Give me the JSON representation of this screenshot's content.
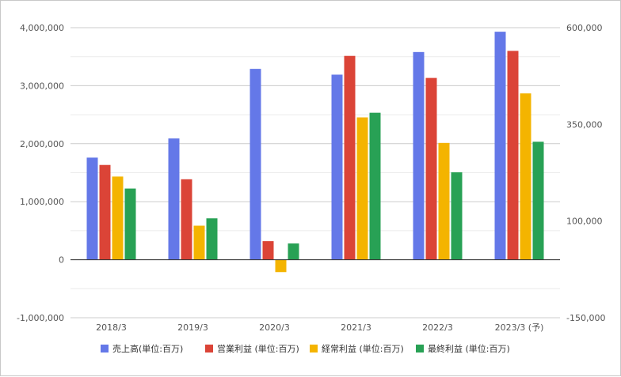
{
  "chart_data": {
    "type": "bar",
    "categories": [
      "2018/3",
      "2019/3",
      "2020/3",
      "2021/3",
      "2022/3",
      "2023/3 (予)"
    ],
    "left_axis": {
      "range": [
        -1000000,
        4000000
      ],
      "ticks": [
        "4,000,000",
        "3,000,000",
        "2,000,000",
        "1,000,000",
        "0",
        "-1,000,000"
      ],
      "tick_values": [
        4000000,
        3000000,
        2000000,
        1000000,
        0,
        -1000000
      ]
    },
    "right_axis": {
      "range": [
        -150000,
        600000
      ],
      "ticks": [
        "600,000",
        "350,000",
        "100,000",
        "-150,000"
      ],
      "tick_values": [
        600000,
        350000,
        100000,
        -150000
      ]
    },
    "grid": true,
    "legend_position": "bottom",
    "series": [
      {
        "name": "売上高(単位:百万)",
        "axis": "left",
        "color": "#6478e8",
        "values": [
          1760000,
          2090000,
          3290000,
          3190000,
          3580000,
          3930000
        ]
      },
      {
        "name": "営業利益 (単位:百万)",
        "axis": "right",
        "color": "#db4437",
        "values": [
          245000,
          208000,
          48000,
          527000,
          470000,
          540000
        ]
      },
      {
        "name": "経常利益 (単位:百万)",
        "axis": "right",
        "color": "#f4b400",
        "values": [
          215000,
          88000,
          -32000,
          368000,
          302000,
          430000
        ]
      },
      {
        "name": "最終利益 (単位:百万)",
        "axis": "right",
        "color": "#28a155",
        "values": [
          184000,
          107000,
          42000,
          380000,
          226000,
          305000
        ]
      }
    ]
  }
}
